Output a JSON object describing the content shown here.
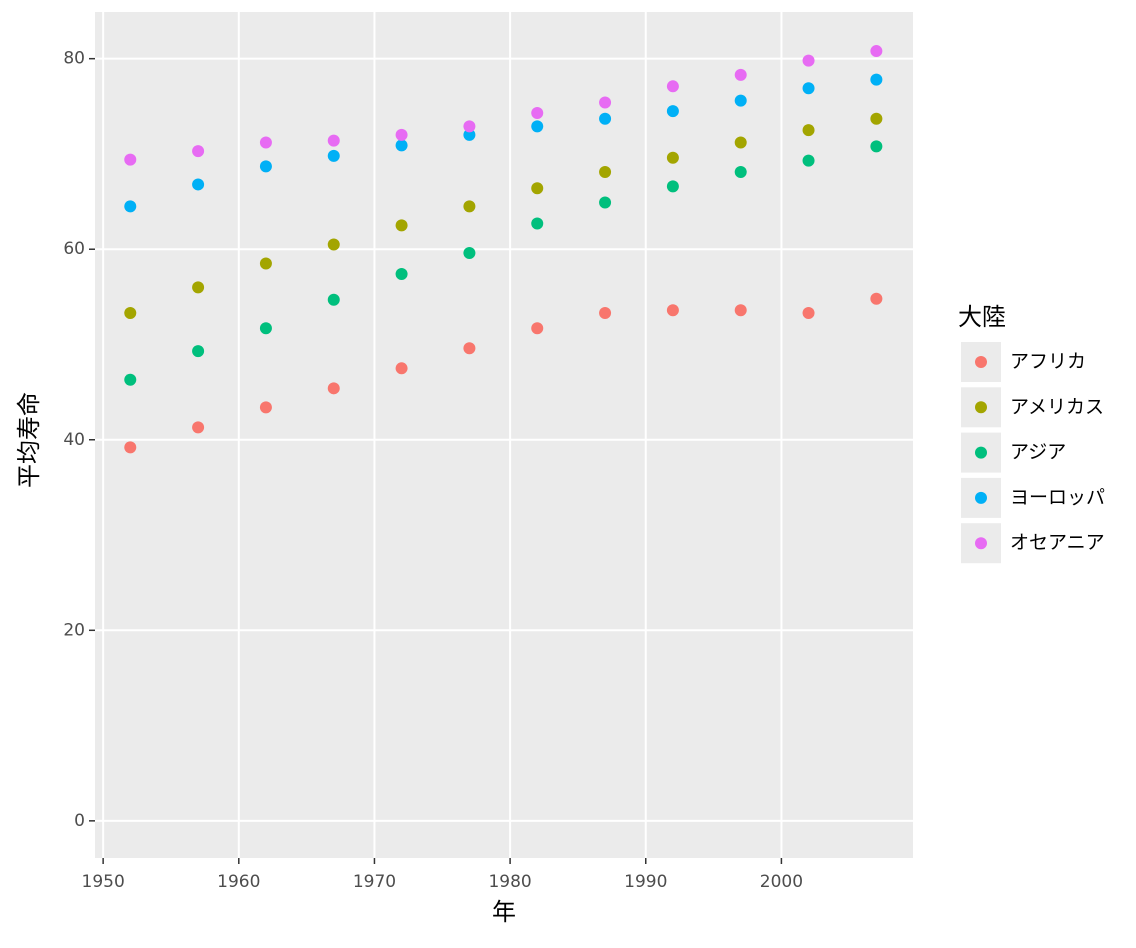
{
  "chart_data": {
    "type": "scatter",
    "x_label": "年",
    "y_label": "平均寿命",
    "legend_title": "大陸",
    "x": [
      1952,
      1957,
      1962,
      1967,
      1972,
      1977,
      1982,
      1987,
      1992,
      1997,
      2002,
      2007
    ],
    "series": [
      {
        "name": "アフリカ",
        "color": "#F8766D",
        "values": [
          39.2,
          41.3,
          43.4,
          45.4,
          47.5,
          49.6,
          51.7,
          53.3,
          53.6,
          53.6,
          53.3,
          54.8
        ]
      },
      {
        "name": "アメリカス",
        "color": "#A3A500",
        "values": [
          53.3,
          56.0,
          58.5,
          60.5,
          62.5,
          64.5,
          66.4,
          68.1,
          69.6,
          71.2,
          72.5,
          73.7
        ]
      },
      {
        "name": "アジア",
        "color": "#00BF7D",
        "values": [
          46.3,
          49.3,
          51.7,
          54.7,
          57.4,
          59.6,
          62.7,
          64.9,
          66.6,
          68.1,
          69.3,
          70.8
        ]
      },
      {
        "name": "ヨーロッパ",
        "color": "#00B0F6",
        "values": [
          64.5,
          66.8,
          68.7,
          69.8,
          70.9,
          72.0,
          72.9,
          73.7,
          74.5,
          75.6,
          76.9,
          77.8
        ]
      },
      {
        "name": "オセアニア",
        "color": "#E76BF3",
        "values": [
          69.4,
          70.3,
          71.2,
          71.4,
          72.0,
          72.9,
          74.3,
          75.4,
          77.1,
          78.3,
          79.8,
          80.8
        ]
      }
    ],
    "xlim": [
      1949.4,
      2009.7
    ],
    "ylim": [
      -3.9,
      84.9
    ],
    "xticks": [
      1950,
      1960,
      1970,
      1980,
      1990,
      2000
    ],
    "yticks": [
      0,
      20,
      40,
      60,
      80
    ],
    "grid": true,
    "legend": "right"
  }
}
